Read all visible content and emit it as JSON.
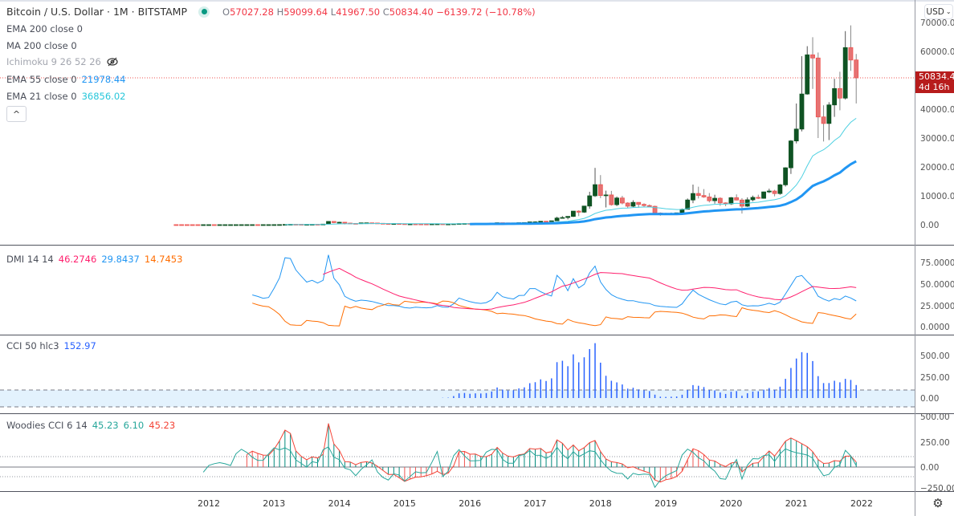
{
  "header": {
    "symbol_title": "Bitcoin / U.S. Dollar · 1M · BITSTAMP",
    "ohlc": {
      "o_label": "O",
      "o": "57027.28",
      "h_label": "H",
      "h": "59099.64",
      "l_label": "L",
      "l": "41967.50",
      "c_label": "C",
      "c": "50834.40",
      "change": "−6139.72 (−10.78%)"
    },
    "market_status": "open"
  },
  "indicators": {
    "ema200": {
      "label": "EMA 200 close 0"
    },
    "ma200": {
      "label": "MA 200 close 0"
    },
    "ichimoku": {
      "label": "Ichimoku 9 26 52 26",
      "icon": "eye-crossed-icon"
    },
    "ema55": {
      "label": "EMA 55 close 0",
      "value": "21978.44",
      "color": "#2196f3"
    },
    "ema21": {
      "label": "EMA 21 close 0",
      "value": "36856.02",
      "color": "#26c6da"
    },
    "collapse_label": "^"
  },
  "dmi": {
    "label": "DMI 14 14",
    "adx": "46.2746",
    "plus_di": "29.8437",
    "minus_di": "14.7453",
    "colors": {
      "adx": "#ff1f6d",
      "plus_di": "#2196f3",
      "minus_di": "#ff6d00"
    }
  },
  "cci": {
    "label": "CCI 50 hlc3",
    "value": "152.97",
    "color": "#2962ff"
  },
  "woodies": {
    "label": "Woodies CCI 6 14",
    "v1": "45.23",
    "v2": "6.10",
    "v3": "45.23",
    "colors": {
      "turbo": "#26a69a",
      "cci14": "#f44336",
      "hist_up": "#00897b",
      "hist_down": "#ef5350"
    }
  },
  "price_axis": {
    "currency": "USD",
    "ticks": [
      "70000.00",
      "60000.00",
      "40000.00",
      "30000.00",
      "20000.00",
      "10000.00",
      "0.00"
    ],
    "last_price": "50834.40",
    "countdown": "4d 16h"
  },
  "dmi_axis": {
    "ticks": [
      "75.0000",
      "50.0000",
      "25.0000",
      "0.0000"
    ]
  },
  "cci_axis": {
    "ticks": [
      "500.00",
      "250.00",
      "0.00"
    ]
  },
  "woodies_axis": {
    "ticks": [
      "500.00",
      "250.00",
      "0.00",
      "−250.00"
    ]
  },
  "time_axis": {
    "labels": [
      "2012",
      "2013",
      "2014",
      "2015",
      "2016",
      "2017",
      "2018",
      "2019",
      "2020",
      "2021",
      "2022"
    ]
  },
  "colors": {
    "up": "#0f5323",
    "down": "#ef5350",
    "wick": "#9e9e9e",
    "last_price": "#b71c1c",
    "cci_band": "#e3f2fd"
  },
  "chart_data": {
    "type": "candlestick",
    "interval": "1M",
    "ylim": [
      0,
      70000
    ],
    "dmi_ylim": [
      0,
      75
    ],
    "cci_ylim": [
      -100,
      600
    ],
    "woodies_ylim": [
      -250,
      500
    ],
    "candles": [
      [
        "2011-07",
        15.4,
        17.5,
        12.6,
        13.4
      ],
      [
        "2011-08",
        13.4,
        13.9,
        7.1,
        8.2
      ],
      [
        "2011-09",
        8.2,
        8.6,
        4.6,
        5.1
      ],
      [
        "2011-10",
        5.1,
        5.2,
        2.3,
        3.2
      ],
      [
        "2011-11",
        3.2,
        3.6,
        2.0,
        3.0
      ],
      [
        "2011-12",
        3.0,
        4.9,
        2.7,
        4.7
      ],
      [
        "2012-01",
        4.7,
        7.2,
        4.7,
        5.5
      ],
      [
        "2012-02",
        5.5,
        6.2,
        4.3,
        4.9
      ],
      [
        "2012-03",
        4.9,
        5.4,
        4.7,
        4.9
      ],
      [
        "2012-04",
        4.9,
        5.3,
        4.8,
        5.0
      ],
      [
        "2012-05",
        5.0,
        5.2,
        4.9,
        5.2
      ],
      [
        "2012-06",
        5.2,
        6.7,
        5.2,
        6.7
      ],
      [
        "2012-07",
        6.7,
        9.7,
        6.5,
        9.4
      ],
      [
        "2012-08",
        9.4,
        16.4,
        7.1,
        10.2
      ],
      [
        "2012-09",
        10.2,
        12.5,
        9.9,
        12.4
      ],
      [
        "2012-10",
        12.4,
        12.9,
        9.9,
        11.2
      ],
      [
        "2012-11",
        11.2,
        12.9,
        10.5,
        12.6
      ],
      [
        "2012-12",
        12.6,
        13.6,
        12.5,
        13.5
      ],
      [
        "2013-01",
        13.5,
        20.7,
        13.4,
        20.4
      ],
      [
        "2013-02",
        20.4,
        33.5,
        19.5,
        33.4
      ],
      [
        "2013-03",
        33.4,
        95,
        33,
        93
      ],
      [
        "2013-04",
        93,
        266,
        50,
        139
      ],
      [
        "2013-05",
        139,
        139,
        79,
        129
      ],
      [
        "2013-06",
        129,
        129,
        88,
        97
      ],
      [
        "2013-07",
        97,
        111,
        65,
        106
      ],
      [
        "2013-08",
        106,
        141,
        100,
        141
      ],
      [
        "2013-09",
        141,
        144,
        114,
        133
      ],
      [
        "2013-10",
        133,
        220,
        102,
        203
      ],
      [
        "2013-11",
        203,
        1163,
        200,
        1130
      ],
      [
        "2013-12",
        1130,
        1160,
        522,
        732
      ],
      [
        "2014-01",
        732,
        1015,
        730,
        850
      ],
      [
        "2014-02",
        850,
        850,
        102,
        550
      ],
      [
        "2014-03",
        550,
        700,
        440,
        450
      ],
      [
        "2014-04",
        450,
        547,
        340,
        445
      ],
      [
        "2014-05",
        445,
        655,
        420,
        630
      ],
      [
        "2014-06",
        630,
        680,
        545,
        640
      ],
      [
        "2014-07",
        640,
        650,
        563,
        585
      ],
      [
        "2014-08",
        585,
        600,
        445,
        480
      ],
      [
        "2014-09",
        480,
        512,
        365,
        385
      ],
      [
        "2014-10",
        385,
        420,
        275,
        340
      ],
      [
        "2014-11",
        340,
        460,
        312,
        378
      ],
      [
        "2014-12",
        378,
        384,
        305,
        320
      ],
      [
        "2015-01",
        320,
        324,
        152,
        218
      ],
      [
        "2015-02",
        218,
        265,
        210,
        254
      ],
      [
        "2015-03",
        254,
        302,
        240,
        244
      ],
      [
        "2015-04",
        244,
        262,
        214,
        236
      ],
      [
        "2015-05",
        236,
        247,
        228,
        230
      ],
      [
        "2015-06",
        230,
        265,
        218,
        263
      ],
      [
        "2015-07",
        263,
        319,
        253,
        284
      ],
      [
        "2015-08",
        284,
        285,
        162,
        230
      ],
      [
        "2015-09",
        230,
        244,
        225,
        236
      ],
      [
        "2015-10",
        236,
        332,
        236,
        313
      ],
      [
        "2015-11",
        313,
        502,
        302,
        377
      ],
      [
        "2015-12",
        377,
        465,
        349,
        430
      ],
      [
        "2016-01",
        430,
        462,
        354,
        369
      ],
      [
        "2016-02",
        369,
        448,
        365,
        437
      ],
      [
        "2016-03",
        437,
        439,
        406,
        416
      ],
      [
        "2016-04",
        416,
        468,
        412,
        448
      ],
      [
        "2016-05",
        448,
        550,
        434,
        531
      ],
      [
        "2016-06",
        531,
        780,
        521,
        673
      ],
      [
        "2016-07",
        673,
        704,
        474,
        624
      ],
      [
        "2016-08",
        624,
        624,
        538,
        575
      ],
      [
        "2016-09",
        575,
        618,
        569,
        609
      ],
      [
        "2016-10",
        609,
        724,
        603,
        700
      ],
      [
        "2016-11",
        700,
        753,
        685,
        745
      ],
      [
        "2016-12",
        745,
        975,
        744,
        964
      ],
      [
        "2017-01",
        964,
        1153,
        751,
        970
      ],
      [
        "2017-02",
        970,
        1200,
        917,
        1190
      ],
      [
        "2017-03",
        1190,
        1293,
        890,
        1080
      ],
      [
        "2017-04",
        1080,
        1350,
        1060,
        1350
      ],
      [
        "2017-05",
        1350,
        2760,
        1350,
        2300
      ],
      [
        "2017-06",
        2300,
        2980,
        2150,
        2480
      ],
      [
        "2017-07",
        2480,
        2920,
        1830,
        2875
      ],
      [
        "2017-08",
        2875,
        4760,
        2660,
        4700
      ],
      [
        "2017-09",
        4700,
        4980,
        2970,
        4340
      ],
      [
        "2017-10",
        4340,
        6470,
        4110,
        6450
      ],
      [
        "2017-11",
        6450,
        11400,
        5510,
        10000
      ],
      [
        "2017-12",
        10000,
        19666,
        9600,
        13860
      ],
      [
        "2018-01",
        13860,
        17170,
        9200,
        10100
      ],
      [
        "2018-02",
        10100,
        11790,
        5970,
        10300
      ],
      [
        "2018-03",
        10300,
        11700,
        6600,
        6930
      ],
      [
        "2018-04",
        6930,
        9750,
        6430,
        9240
      ],
      [
        "2018-05",
        9240,
        9990,
        7040,
        7500
      ],
      [
        "2018-06",
        7500,
        7760,
        5760,
        6400
      ],
      [
        "2018-07",
        6400,
        8480,
        6080,
        7730
      ],
      [
        "2018-08",
        7730,
        7760,
        5880,
        7030
      ],
      [
        "2018-09",
        7030,
        7410,
        6150,
        6630
      ],
      [
        "2018-10",
        6630,
        7000,
        6200,
        6370
      ],
      [
        "2018-11",
        6370,
        6580,
        3560,
        4040
      ],
      [
        "2018-12",
        4040,
        4250,
        3120,
        3740
      ],
      [
        "2019-01",
        3740,
        4100,
        3350,
        3440
      ],
      [
        "2019-02",
        3440,
        4200,
        3380,
        3820
      ],
      [
        "2019-03",
        3820,
        4130,
        3690,
        4100
      ],
      [
        "2019-04",
        4100,
        5600,
        4070,
        5320
      ],
      [
        "2019-05",
        5320,
        9080,
        5300,
        8560
      ],
      [
        "2019-06",
        8560,
        13880,
        7450,
        10800
      ],
      [
        "2019-07",
        10800,
        13150,
        9070,
        10100
      ],
      [
        "2019-08",
        10100,
        12330,
        9320,
        9600
      ],
      [
        "2019-09",
        9600,
        10950,
        7710,
        8300
      ],
      [
        "2019-10",
        8300,
        10370,
        7300,
        9150
      ],
      [
        "2019-11",
        9150,
        9510,
        6530,
        7550
      ],
      [
        "2019-12",
        7550,
        7740,
        6420,
        7190
      ],
      [
        "2020-01",
        7190,
        9580,
        6860,
        9350
      ],
      [
        "2020-02",
        9350,
        10500,
        8430,
        8540
      ],
      [
        "2020-03",
        8540,
        9190,
        3850,
        6410
      ],
      [
        "2020-04",
        6410,
        9460,
        6150,
        8620
      ],
      [
        "2020-05",
        8620,
        10070,
        8100,
        9450
      ],
      [
        "2020-06",
        9450,
        10390,
        8900,
        9140
      ],
      [
        "2020-07",
        9140,
        11450,
        8990,
        11350
      ],
      [
        "2020-08",
        11350,
        12470,
        10950,
        11650
      ],
      [
        "2020-09",
        11650,
        12070,
        9830,
        10780
      ],
      [
        "2020-10",
        10780,
        14100,
        10370,
        13800
      ],
      [
        "2020-11",
        13800,
        19880,
        13200,
        19700
      ],
      [
        "2020-12",
        19700,
        29300,
        17570,
        28990
      ],
      [
        "2021-01",
        28990,
        41950,
        28130,
        33100
      ],
      [
        "2021-02",
        33100,
        58350,
        32300,
        45240
      ],
      [
        "2021-03",
        45240,
        61790,
        45000,
        58800
      ],
      [
        "2021-04",
        58800,
        64900,
        47000,
        57700
      ],
      [
        "2021-05",
        57700,
        59600,
        30000,
        37300
      ],
      [
        "2021-06",
        37300,
        41330,
        28800,
        35040
      ],
      [
        "2021-07",
        35040,
        42400,
        29300,
        41460
      ],
      [
        "2021-08",
        41460,
        50500,
        37330,
        47130
      ],
      [
        "2021-09",
        47130,
        52950,
        39600,
        43820
      ],
      [
        "2021-10",
        43820,
        67000,
        43300,
        61300
      ],
      [
        "2021-11",
        61300,
        69000,
        53250,
        57000
      ],
      [
        "2021-12",
        57027.28,
        59099.64,
        41967.5,
        50834.4
      ]
    ]
  }
}
